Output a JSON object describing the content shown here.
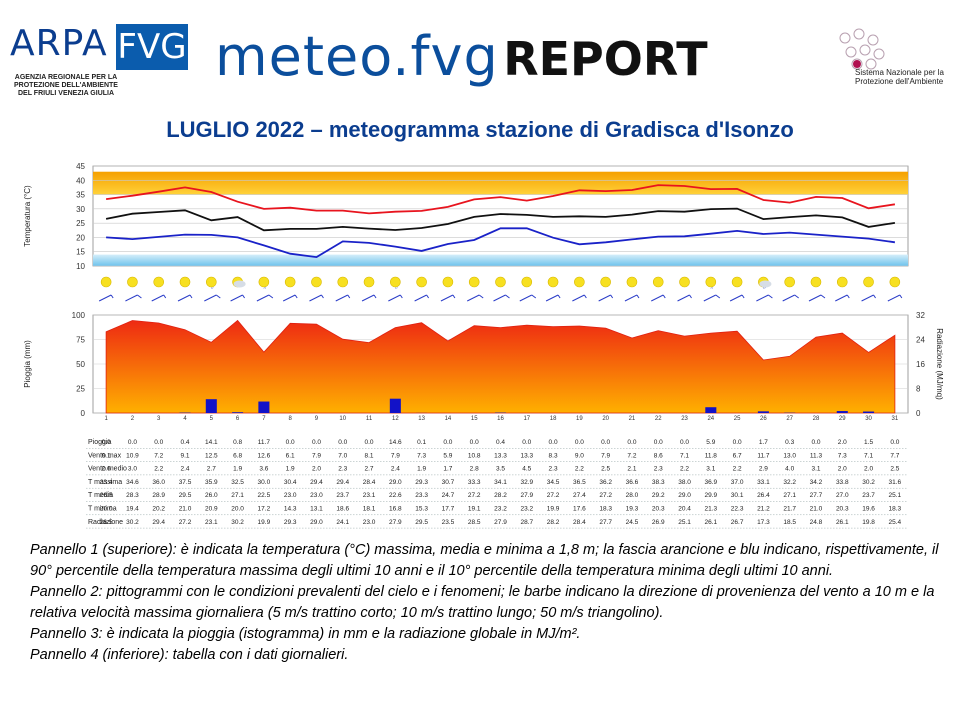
{
  "header": {
    "logo_arpa": "ARPA",
    "logo_fvg": "FVG",
    "logo_subtitle": "AGENZIA REGIONALE PER LA PROTEZIONE DELL'AMBIENTE DEL FRIULI VENEZIA GIULIA",
    "title_meteo": "meteo.fvg",
    "title_report": "REPORT",
    "snpa_label": "Sistema Nazionale per la Protezione dell'Ambiente"
  },
  "page_title": "LUGLIO 2022 – meteogramma stazione di Gradisca d'Isonzo",
  "caption": [
    "Pannello 1 (superiore): è indicata la temperatura (°C) massima, media e minima a 1,8 m; la fascia arancione e blu indicano, rispettivamente, il 90° percentile della temperatura massima degli ultimi 10 anni e il 10° percentile della temperatura minima degli ultimi 10 anni.",
    "Pannello 2: pittogrammi con le condizioni prevalenti del cielo e i fenomeni; le barbe indicano la direzione di provenienza del vento a 10 m e la relativa velocità massima giornaliera (5 m/s trattino corto; 10 m/s trattino lungo; 50 m/s triangolino).",
    "Pannello 3: è indicata la pioggia (istogramma) in mm e la radiazione globale in MJ/m².",
    "Pannello 4 (inferiore): tabella con i dati giornalieri."
  ],
  "colors": {
    "max": "#e8141e",
    "mean": "#111111",
    "min": "#1a22c8",
    "orange_band": "#f5a800",
    "blue_band": "#a9d8f2",
    "radiation": "#f03c10",
    "rain": "#1212c8"
  },
  "chart_data": [
    {
      "type": "line",
      "xlabel": "",
      "ylabel": "Temperatura (°C)",
      "ylim": [
        10,
        45
      ],
      "yticks": [
        10,
        15,
        20,
        25,
        30,
        35,
        40,
        45
      ],
      "x": [
        1,
        2,
        3,
        4,
        5,
        6,
        7,
        8,
        9,
        10,
        11,
        12,
        13,
        14,
        15,
        16,
        17,
        18,
        19,
        20,
        21,
        22,
        23,
        24,
        25,
        26,
        27,
        28,
        29,
        30,
        31
      ],
      "series": [
        {
          "key": "tmax",
          "values": [
            33.4,
            34.6,
            36.0,
            37.5,
            35.9,
            32.5,
            30.0,
            30.4,
            29.4,
            29.4,
            28.4,
            29.0,
            29.3,
            30.7,
            33.3,
            34.1,
            32.9,
            34.5,
            36.5,
            36.2,
            36.6,
            38.3,
            38.0,
            36.9,
            37.0,
            33.1,
            32.2,
            34.2,
            33.8,
            30.2,
            31.6
          ]
        },
        {
          "key": "tmean",
          "values": [
            26.5,
            28.3,
            28.9,
            29.5,
            26.0,
            27.1,
            22.5,
            23.0,
            23.0,
            23.7,
            23.1,
            22.6,
            23.3,
            24.7,
            27.2,
            28.2,
            27.9,
            27.2,
            27.4,
            27.2,
            28.0,
            29.2,
            29.0,
            29.9,
            30.1,
            26.4,
            27.1,
            27.7,
            27.0,
            23.7,
            25.1
          ]
        },
        {
          "key": "tmin",
          "values": [
            20.0,
            19.4,
            20.2,
            21.0,
            20.9,
            20.0,
            17.2,
            14.3,
            13.1,
            18.6,
            18.1,
            16.8,
            15.3,
            17.7,
            19.1,
            23.2,
            23.2,
            19.9,
            17.6,
            18.3,
            19.3,
            20.3,
            20.4,
            21.3,
            22.3,
            21.2,
            21.7,
            21.0,
            20.3,
            19.6,
            18.3
          ]
        }
      ],
      "band_p90_tmax": {
        "low": 35,
        "high": 43
      },
      "band_p10_tmin": {
        "low": 10,
        "high": 14
      }
    },
    {
      "type": "bar",
      "y_left_label": "Pioggia (mm)",
      "y_right_label": "Radiazione (MJ/mq)",
      "ylim_left": [
        0,
        100
      ],
      "ylim_right": [
        0,
        32
      ],
      "yticks_left": [
        0,
        25,
        50,
        75,
        100
      ],
      "yticks_right": [
        0,
        8,
        16,
        24,
        32
      ],
      "categories": [
        "1",
        "2",
        "3",
        "4",
        "5",
        "6",
        "7",
        "8",
        "9",
        "10",
        "11",
        "12",
        "13",
        "14",
        "15",
        "16",
        "17",
        "18",
        "19",
        "20",
        "21",
        "22",
        "23",
        "24",
        "25",
        "26",
        "27",
        "28",
        "29",
        "30",
        "31"
      ],
      "series": [
        {
          "key": "pioggia",
          "values": [
            0.0,
            0.0,
            0.0,
            0.4,
            14.1,
            0.8,
            11.7,
            0.0,
            0.0,
            0.0,
            0.0,
            14.6,
            0.1,
            0.0,
            0.0,
            0.4,
            0.0,
            0.0,
            0.0,
            0.0,
            0.0,
            0.0,
            0.0,
            5.9,
            0.0,
            1.7,
            0.3,
            0.0,
            2.0,
            1.5,
            0.0
          ]
        },
        {
          "key": "radiazione",
          "values": [
            26.5,
            30.2,
            29.4,
            27.2,
            23.1,
            30.2,
            19.9,
            29.3,
            29.0,
            24.1,
            23.0,
            27.9,
            29.5,
            23.5,
            28.5,
            27.9,
            28.7,
            28.2,
            28.4,
            27.7,
            24.5,
            26.9,
            25.1,
            26.1,
            26.7,
            17.3,
            18.5,
            24.8,
            26.1,
            19.8,
            25.4
          ]
        }
      ]
    },
    {
      "type": "table",
      "row_labels": [
        "Pioggia",
        "Vento max",
        "Vento medio",
        "T massima",
        "T media",
        "T minima",
        "Radiazione"
      ],
      "rows": [
        [
          "0.0",
          "0.0",
          "0.0",
          "0.4",
          "14.1",
          "0.8",
          "11.7",
          "0.0",
          "0.0",
          "0.0",
          "0.0",
          "14.6",
          "0.1",
          "0.0",
          "0.0",
          "0.4",
          "0.0",
          "0.0",
          "0.0",
          "0.0",
          "0.0",
          "0.0",
          "0.0",
          "5.9",
          "0.0",
          "1.7",
          "0.3",
          "0.0",
          "2.0",
          "1.5",
          "0.0"
        ],
        [
          "9.1",
          "10.9",
          "7.2",
          "9.1",
          "12.5",
          "6.8",
          "12.6",
          "6.1",
          "7.9",
          "7.0",
          "8.1",
          "7.9",
          "7.3",
          "5.9",
          "10.8",
          "13.3",
          "13.3",
          "8.3",
          "9.0",
          "7.9",
          "7.2",
          "8.6",
          "7.1",
          "11.8",
          "6.7",
          "11.7",
          "13.0",
          "11.3",
          "7.3",
          "7.1",
          "7.7"
        ],
        [
          "2.6",
          "3.0",
          "2.2",
          "2.4",
          "2.7",
          "1.9",
          "3.6",
          "1.9",
          "2.0",
          "2.3",
          "2.7",
          "2.4",
          "1.9",
          "1.7",
          "2.8",
          "3.5",
          "4.5",
          "2.3",
          "2.2",
          "2.5",
          "2.1",
          "2.3",
          "2.2",
          "3.1",
          "2.2",
          "2.9",
          "4.0",
          "3.1",
          "2.0",
          "2.0",
          "2.5"
        ],
        [
          "33.4",
          "34.6",
          "36.0",
          "37.5",
          "35.9",
          "32.5",
          "30.0",
          "30.4",
          "29.4",
          "29.4",
          "28.4",
          "29.0",
          "29.3",
          "30.7",
          "33.3",
          "34.1",
          "32.9",
          "34.5",
          "36.5",
          "36.2",
          "36.6",
          "38.3",
          "38.0",
          "36.9",
          "37.0",
          "33.1",
          "32.2",
          "34.2",
          "33.8",
          "30.2",
          "31.6"
        ],
        [
          "26.5",
          "28.3",
          "28.9",
          "29.5",
          "26.0",
          "27.1",
          "22.5",
          "23.0",
          "23.0",
          "23.7",
          "23.1",
          "22.6",
          "23.3",
          "24.7",
          "27.2",
          "28.2",
          "27.9",
          "27.2",
          "27.4",
          "27.2",
          "28.0",
          "29.2",
          "29.0",
          "29.9",
          "30.1",
          "26.4",
          "27.1",
          "27.7",
          "27.0",
          "23.7",
          "25.1"
        ],
        [
          "20.0",
          "19.4",
          "20.2",
          "21.0",
          "20.9",
          "20.0",
          "17.2",
          "14.3",
          "13.1",
          "18.6",
          "18.1",
          "16.8",
          "15.3",
          "17.7",
          "19.1",
          "23.2",
          "23.2",
          "19.9",
          "17.6",
          "18.3",
          "19.3",
          "20.3",
          "20.4",
          "21.3",
          "22.3",
          "21.2",
          "21.7",
          "21.0",
          "20.3",
          "19.6",
          "18.3"
        ],
        [
          "26.5",
          "30.2",
          "29.4",
          "27.2",
          "23.1",
          "30.2",
          "19.9",
          "29.3",
          "29.0",
          "24.1",
          "23.0",
          "27.9",
          "29.5",
          "23.5",
          "28.5",
          "27.9",
          "28.7",
          "28.2",
          "28.4",
          "27.7",
          "24.5",
          "26.9",
          "25.1",
          "26.1",
          "26.7",
          "17.3",
          "18.5",
          "24.8",
          "26.1",
          "19.8",
          "25.4"
        ]
      ]
    }
  ],
  "pictograms": [
    "sun",
    "sun",
    "sun",
    "sun",
    "sun-rain",
    "cloud-sun",
    "sun-rain",
    "sun",
    "sun",
    "sun",
    "sun",
    "sun-rain",
    "sun",
    "sun",
    "sun",
    "sun",
    "sun",
    "sun",
    "sun",
    "sun",
    "sun",
    "sun",
    "sun",
    "sun-rain",
    "sun",
    "cloud-rain",
    "sun",
    "sun",
    "sun",
    "sun",
    "sun"
  ]
}
